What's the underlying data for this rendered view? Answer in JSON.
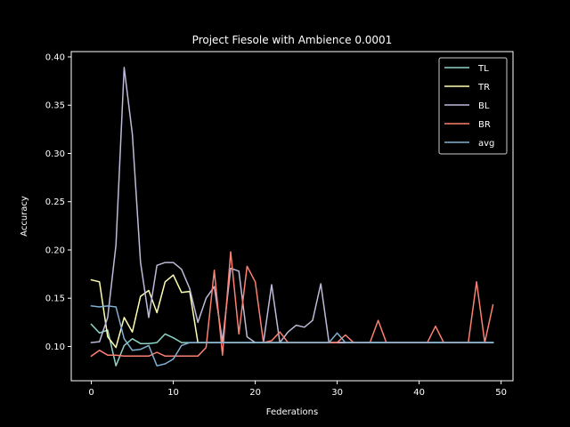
{
  "chart_data": {
    "type": "line",
    "title": "Project Fiesole with Ambience 0.0001",
    "xlabel": "Federations",
    "ylabel": "Accuracy",
    "xlim": [
      -2.45,
      51.45
    ],
    "ylim": [
      0.0645,
      0.4055
    ],
    "xticks": [
      0,
      10,
      20,
      30,
      40,
      50
    ],
    "yticks": [
      0.1,
      0.15,
      0.2,
      0.25,
      0.3,
      0.35,
      0.4
    ],
    "ytick_labels": [
      "0.10",
      "0.15",
      "0.20",
      "0.25",
      "0.30",
      "0.35",
      "0.40"
    ],
    "grid": false,
    "legend_position": "top-right",
    "x": [
      0,
      1,
      2,
      3,
      4,
      5,
      6,
      7,
      8,
      9,
      10,
      11,
      12,
      13,
      14,
      15,
      16,
      17,
      18,
      19,
      20,
      21,
      22,
      23,
      24,
      25,
      26,
      27,
      28,
      29,
      30,
      31,
      32,
      33,
      34,
      35,
      36,
      37,
      38,
      39,
      40,
      41,
      42,
      43,
      44,
      45,
      46,
      47,
      48,
      49
    ],
    "series": [
      {
        "name": "TL",
        "color": "#8dd3c7",
        "values": [
          0.123,
          0.114,
          0.117,
          0.08,
          0.101,
          0.108,
          0.103,
          0.103,
          0.104,
          0.113,
          0.109,
          0.104,
          0.104,
          0.104,
          0.104,
          0.104,
          0.104,
          0.104,
          0.104,
          0.104,
          0.104,
          0.104,
          0.104,
          0.104,
          0.104,
          0.104,
          0.104,
          0.104,
          0.104,
          0.104,
          0.104,
          0.104,
          0.104,
          0.104,
          0.104,
          0.104,
          0.104,
          0.104,
          0.104,
          0.104,
          0.104,
          0.104,
          0.104,
          0.104,
          0.104,
          0.104,
          0.104,
          0.104,
          0.104,
          0.104
        ]
      },
      {
        "name": "TR",
        "color": "#ffffb3",
        "values": [
          0.169,
          0.167,
          0.11,
          0.099,
          0.13,
          0.115,
          0.152,
          0.158,
          0.135,
          0.167,
          0.174,
          0.156,
          0.157,
          0.104,
          0.104,
          0.104,
          0.104,
          0.104,
          0.104,
          0.104,
          0.104,
          0.104,
          0.104,
          0.104,
          0.104,
          0.104,
          0.104,
          0.104,
          0.104,
          0.104,
          0.104,
          0.104,
          0.104,
          0.104,
          0.104,
          0.104,
          0.104,
          0.104,
          0.104,
          0.104,
          0.104,
          0.104,
          0.104,
          0.104,
          0.104,
          0.104,
          0.104,
          0.104,
          0.104,
          0.104
        ]
      },
      {
        "name": "BL",
        "color": "#bebada",
        "values": [
          0.104,
          0.105,
          0.13,
          0.205,
          0.389,
          0.32,
          0.187,
          0.13,
          0.184,
          0.187,
          0.187,
          0.18,
          0.16,
          0.125,
          0.15,
          0.162,
          0.105,
          0.181,
          0.178,
          0.11,
          0.104,
          0.104,
          0.164,
          0.104,
          0.115,
          0.122,
          0.12,
          0.127,
          0.165,
          0.104,
          0.104,
          0.104,
          0.104,
          0.104,
          0.104,
          0.104,
          0.104,
          0.104,
          0.104,
          0.104,
          0.104,
          0.104,
          0.104,
          0.104,
          0.104,
          0.104,
          0.104,
          0.104,
          0.104,
          0.104
        ]
      },
      {
        "name": "BR",
        "color": "#fb8072",
        "values": [
          0.09,
          0.096,
          0.091,
          0.091,
          0.09,
          0.09,
          0.09,
          0.09,
          0.094,
          0.09,
          0.09,
          0.09,
          0.09,
          0.09,
          0.099,
          0.179,
          0.091,
          0.198,
          0.113,
          0.183,
          0.167,
          0.104,
          0.106,
          0.115,
          0.104,
          0.104,
          0.104,
          0.104,
          0.104,
          0.104,
          0.104,
          0.112,
          0.104,
          0.104,
          0.104,
          0.127,
          0.104,
          0.104,
          0.104,
          0.104,
          0.104,
          0.104,
          0.121,
          0.104,
          0.104,
          0.104,
          0.104,
          0.167,
          0.104,
          0.143
        ]
      },
      {
        "name": "avg",
        "color": "#80b1d3",
        "values": [
          0.142,
          0.141,
          0.142,
          0.141,
          0.108,
          0.096,
          0.097,
          0.101,
          0.08,
          0.082,
          0.087,
          0.101,
          0.104,
          0.104,
          0.104,
          0.104,
          0.104,
          0.104,
          0.104,
          0.104,
          0.104,
          0.104,
          0.104,
          0.104,
          0.104,
          0.104,
          0.104,
          0.104,
          0.104,
          0.104,
          0.114,
          0.104,
          0.104,
          0.104,
          0.104,
          0.104,
          0.104,
          0.104,
          0.104,
          0.104,
          0.104,
          0.104,
          0.104,
          0.104,
          0.104,
          0.104,
          0.104,
          0.104,
          0.104,
          0.104
        ]
      }
    ]
  }
}
